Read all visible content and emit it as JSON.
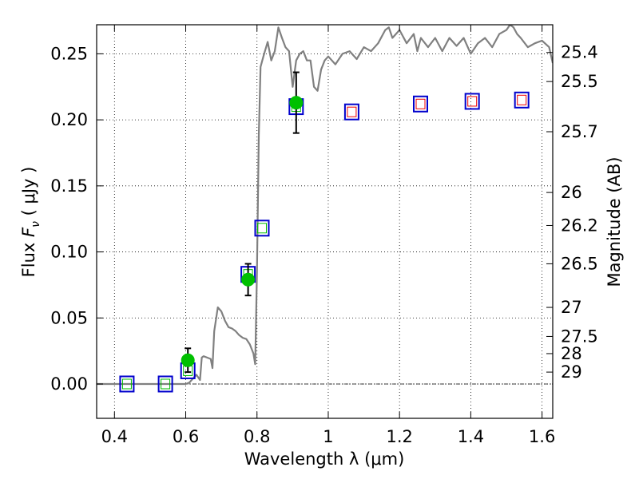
{
  "chart_data": {
    "type": "scatter",
    "title": "",
    "xlabel": "Wavelength  λ (μm)",
    "ylabel": "Flux  F_ν  ( μJy )",
    "ylabel_parts": {
      "prefix": "Flux  ",
      "symbol": "F",
      "subscript": "ν",
      "suffix": "  ( μJy )"
    },
    "y2label": "Magnitude (AB)",
    "xlim": [
      0.35,
      1.63
    ],
    "ylim": [
      -0.026,
      0.272
    ],
    "grid": true,
    "xticks": [
      0.4,
      0.6,
      0.8,
      1.0,
      1.2,
      1.4,
      1.6
    ],
    "xtick_labels": [
      "0.4",
      "0.6",
      "0.8",
      "1",
      "1.2",
      "1.4",
      "1.6"
    ],
    "yticks": [
      0.0,
      0.05,
      0.1,
      0.15,
      0.2,
      0.25
    ],
    "ytick_labels": [
      "0.00",
      "0.05",
      "0.10",
      "0.15",
      "0.20",
      "0.25"
    ],
    "mag_ticks": [
      {
        "label": "25.4",
        "flux": 0.251
      },
      {
        "label": "25.5",
        "flux": 0.229
      },
      {
        "label": "25.7",
        "flux": 0.191
      },
      {
        "label": "26",
        "flux": 0.145
      },
      {
        "label": "26.2",
        "flux": 0.12
      },
      {
        "label": "26.5",
        "flux": 0.091
      },
      {
        "label": "27",
        "flux": 0.058
      },
      {
        "label": "27.5",
        "flux": 0.036
      },
      {
        "label": "28",
        "flux": 0.023
      },
      {
        "label": "29",
        "flux": 0.009
      }
    ],
    "zero_line": 0.0,
    "series": [
      {
        "name": "Model spectrum",
        "kind": "line",
        "color": "#808080",
        "x": [
          0.35,
          0.4,
          0.45,
          0.5,
          0.55,
          0.58,
          0.6,
          0.61,
          0.62,
          0.63,
          0.64,
          0.645,
          0.65,
          0.66,
          0.67,
          0.675,
          0.68,
          0.69,
          0.7,
          0.71,
          0.72,
          0.73,
          0.74,
          0.75,
          0.76,
          0.77,
          0.78,
          0.79,
          0.795,
          0.8,
          0.805,
          0.81,
          0.815,
          0.82,
          0.83,
          0.84,
          0.85,
          0.86,
          0.87,
          0.88,
          0.89,
          0.9,
          0.91,
          0.92,
          0.93,
          0.94,
          0.95,
          0.96,
          0.97,
          0.98,
          0.99,
          1.0,
          1.02,
          1.04,
          1.06,
          1.08,
          1.1,
          1.12,
          1.14,
          1.16,
          1.17,
          1.18,
          1.19,
          1.2,
          1.22,
          1.24,
          1.25,
          1.26,
          1.28,
          1.3,
          1.32,
          1.34,
          1.36,
          1.38,
          1.4,
          1.42,
          1.44,
          1.46,
          1.48,
          1.5,
          1.51,
          1.52,
          1.53,
          1.54,
          1.56,
          1.58,
          1.6,
          1.62,
          1.63
        ],
        "y": [
          0.0,
          0.0,
          0.0,
          0.0,
          0.0,
          0.0,
          0.0,
          0.001,
          0.004,
          0.007,
          0.003,
          0.02,
          0.021,
          0.02,
          0.019,
          0.012,
          0.04,
          0.058,
          0.055,
          0.048,
          0.043,
          0.042,
          0.04,
          0.037,
          0.035,
          0.034,
          0.03,
          0.023,
          0.015,
          0.085,
          0.188,
          0.24,
          0.245,
          0.25,
          0.259,
          0.245,
          0.252,
          0.27,
          0.262,
          0.255,
          0.252,
          0.225,
          0.245,
          0.25,
          0.252,
          0.245,
          0.245,
          0.225,
          0.222,
          0.238,
          0.245,
          0.248,
          0.242,
          0.25,
          0.252,
          0.246,
          0.255,
          0.252,
          0.258,
          0.268,
          0.27,
          0.262,
          0.265,
          0.268,
          0.258,
          0.265,
          0.252,
          0.262,
          0.255,
          0.262,
          0.252,
          0.262,
          0.256,
          0.262,
          0.25,
          0.258,
          0.262,
          0.255,
          0.265,
          0.268,
          0.272,
          0.27,
          0.265,
          0.262,
          0.255,
          0.258,
          0.26,
          0.255,
          0.243
        ]
      },
      {
        "name": "Observed photometry",
        "kind": "errorbar",
        "color": "#00c000",
        "x": [
          0.606,
          0.775,
          0.91
        ],
        "y": [
          0.018,
          0.079,
          0.213
        ],
        "yerr": [
          0.009,
          0.012,
          0.023
        ]
      },
      {
        "name": "Model photometry (blue)",
        "kind": "square",
        "color": "#0000cc",
        "x": [
          0.435,
          0.543,
          0.606,
          0.775,
          0.814,
          0.91,
          1.066,
          1.259,
          1.404,
          1.543
        ],
        "y": [
          0.0,
          0.0,
          0.01,
          0.083,
          0.118,
          0.21,
          0.206,
          0.212,
          0.214,
          0.215
        ]
      },
      {
        "name": "Model photometry (inner)",
        "kind": "inner-square",
        "colors": [
          "#00bb00",
          "#00bb00",
          "#00bb00",
          "#00bb00",
          "#00bb00",
          "#00bb00",
          "#ee0000",
          "#ee0000",
          "#ee0000",
          "#ee0000"
        ],
        "x": [
          0.435,
          0.543,
          0.606,
          0.775,
          0.814,
          0.91,
          1.066,
          1.259,
          1.404,
          1.543
        ],
        "y": [
          0.0,
          0.0,
          0.01,
          0.083,
          0.118,
          0.21,
          0.206,
          0.212,
          0.214,
          0.215
        ]
      }
    ]
  }
}
